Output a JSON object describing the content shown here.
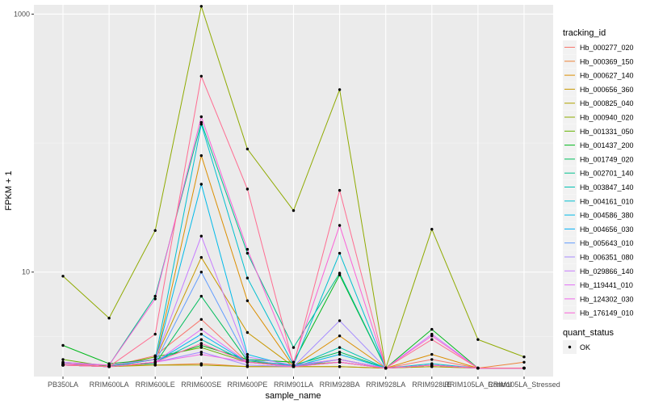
{
  "chart_data": {
    "type": "line",
    "xlabel": "sample_name",
    "ylabel": "FPKM + 1",
    "y_scale": "log10",
    "ylim": [
      1.55,
      1180
    ],
    "y_ticks": [
      {
        "value": 10,
        "label": "10"
      },
      {
        "value": 1000,
        "label": "1000"
      }
    ],
    "categories": [
      "PB350LA",
      "RRIM600LA",
      "RRIM600LE",
      "RRIM600SE",
      "RRIM600PE",
      "RRIM901LA",
      "RRIM928BA",
      "RRIM928LA",
      "RRIM928LE",
      "RRIM105LA_Control",
      "RRIM105LA_Stressed"
    ],
    "legend_title": "tracking_id",
    "legend2_title": "quant_status",
    "legend2_entries": [
      "OK"
    ],
    "legend_position": "right",
    "grid": true,
    "series": [
      {
        "name": "Hb_000277_020",
        "color": "#F8766D",
        "values": [
          1.95,
          1.85,
          2.25,
          4.3,
          2.0,
          1.9,
          2.1,
          1.8,
          2.1,
          1.8,
          1.8
        ]
      },
      {
        "name": "Hb_000369_150",
        "color": "#EC8239",
        "values": [
          2.0,
          1.9,
          1.9,
          1.95,
          1.85,
          1.85,
          1.85,
          1.8,
          1.85,
          1.8,
          2.0
        ]
      },
      {
        "name": "Hb_000627_140",
        "color": "#DB8E00",
        "values": [
          1.9,
          1.85,
          2.0,
          80,
          6.0,
          1.85,
          3.2,
          1.8,
          2.3,
          1.8,
          1.8
        ]
      },
      {
        "name": "Hb_000656_360",
        "color": "#C79800",
        "values": [
          1.9,
          1.85,
          2.1,
          13,
          3.4,
          1.85,
          2.1,
          1.8,
          1.9,
          1.8,
          1.8
        ]
      },
      {
        "name": "Hb_000825_040",
        "color": "#AEA200",
        "values": [
          1.9,
          1.85,
          1.9,
          1.9,
          1.85,
          1.85,
          1.85,
          1.8,
          1.85,
          1.8,
          1.8
        ]
      },
      {
        "name": "Hb_000940_020",
        "color": "#8FAA00",
        "values": [
          9.3,
          4.4,
          21,
          1150,
          90,
          30,
          260,
          1.8,
          21.5,
          3.0,
          2.2
        ]
      },
      {
        "name": "Hb_001331_050",
        "color": "#64B200",
        "values": [
          2.1,
          1.85,
          2.2,
          2.6,
          2.0,
          1.9,
          2.0,
          1.8,
          1.9,
          1.8,
          1.8
        ]
      },
      {
        "name": "Hb_001437_200",
        "color": "#00B81B",
        "values": [
          2.7,
          1.95,
          2.1,
          2.7,
          2.1,
          2.0,
          9.5,
          1.8,
          3.6,
          1.8,
          1.8
        ]
      },
      {
        "name": "Hb_001749_020",
        "color": "#00BD5C",
        "values": [
          1.95,
          1.9,
          1.95,
          6.5,
          2.05,
          1.9,
          2.4,
          1.8,
          1.9,
          1.8,
          1.8
        ]
      },
      {
        "name": "Hb_002701_140",
        "color": "#00C08E",
        "values": [
          1.95,
          1.9,
          6.5,
          145,
          14,
          2.6,
          9.8,
          1.8,
          1.9,
          1.8,
          1.8
        ]
      },
      {
        "name": "Hb_003847_140",
        "color": "#00C1B2",
        "values": [
          1.9,
          1.85,
          2.0,
          3.0,
          2.0,
          1.85,
          2.6,
          1.8,
          1.9,
          1.8,
          1.8
        ]
      },
      {
        "name": "Hb_004161_010",
        "color": "#00BFD0",
        "values": [
          1.9,
          1.85,
          2.1,
          140,
          9,
          1.9,
          14,
          1.8,
          1.95,
          1.8,
          1.8
        ]
      },
      {
        "name": "Hb_004586_380",
        "color": "#00BAE9",
        "values": [
          1.9,
          1.85,
          2.0,
          48,
          2.3,
          1.85,
          2.3,
          1.8,
          1.9,
          1.8,
          1.8
        ]
      },
      {
        "name": "Hb_004656_030",
        "color": "#00B0F6",
        "values": [
          1.9,
          1.85,
          2.0,
          3.3,
          2.0,
          1.85,
          2.0,
          1.8,
          1.9,
          1.8,
          1.8
        ]
      },
      {
        "name": "Hb_005643_010",
        "color": "#619CFF",
        "values": [
          1.9,
          1.85,
          2.0,
          10,
          2.1,
          1.85,
          2.1,
          1.8,
          1.9,
          1.8,
          1.8
        ]
      },
      {
        "name": "Hb_006351_080",
        "color": "#A58AFF",
        "values": [
          1.9,
          1.85,
          2.0,
          2.4,
          1.9,
          1.85,
          4.2,
          1.8,
          1.9,
          1.8,
          1.8
        ]
      },
      {
        "name": "Hb_029866_140",
        "color": "#C77CFF",
        "values": [
          2.0,
          1.9,
          2.1,
          19,
          2.2,
          1.9,
          2.1,
          1.8,
          3.3,
          1.8,
          1.8
        ]
      },
      {
        "name": "Hb_119441_010",
        "color": "#E26EF7",
        "values": [
          1.9,
          1.85,
          2.0,
          3.6,
          2.0,
          1.85,
          2.0,
          1.8,
          1.9,
          1.8,
          1.8
        ]
      },
      {
        "name": "Hb_124302_030",
        "color": "#F066EA",
        "values": [
          1.9,
          1.85,
          2.0,
          2.3,
          2.0,
          1.85,
          2.0,
          1.8,
          1.9,
          1.8,
          1.8
        ]
      },
      {
        "name": "Hb_176149_010",
        "color": "#FB61D7",
        "values": [
          1.95,
          1.9,
          6.2,
          160,
          15,
          2.0,
          23,
          1.8,
          3.2,
          1.8,
          1.8
        ]
      },
      {
        "name": "",
        "color": "#FF65AE",
        "values": [
          1.9,
          1.85,
          2.0,
          2.8,
          2.0,
          1.85,
          2.0,
          1.8,
          1.9,
          1.8,
          1.8
        ]
      },
      {
        "name": "",
        "color": "#FF6C91",
        "values": [
          1.9,
          1.85,
          3.3,
          330,
          44,
          1.9,
          43,
          1.8,
          3.0,
          1.8,
          1.8
        ]
      }
    ]
  }
}
